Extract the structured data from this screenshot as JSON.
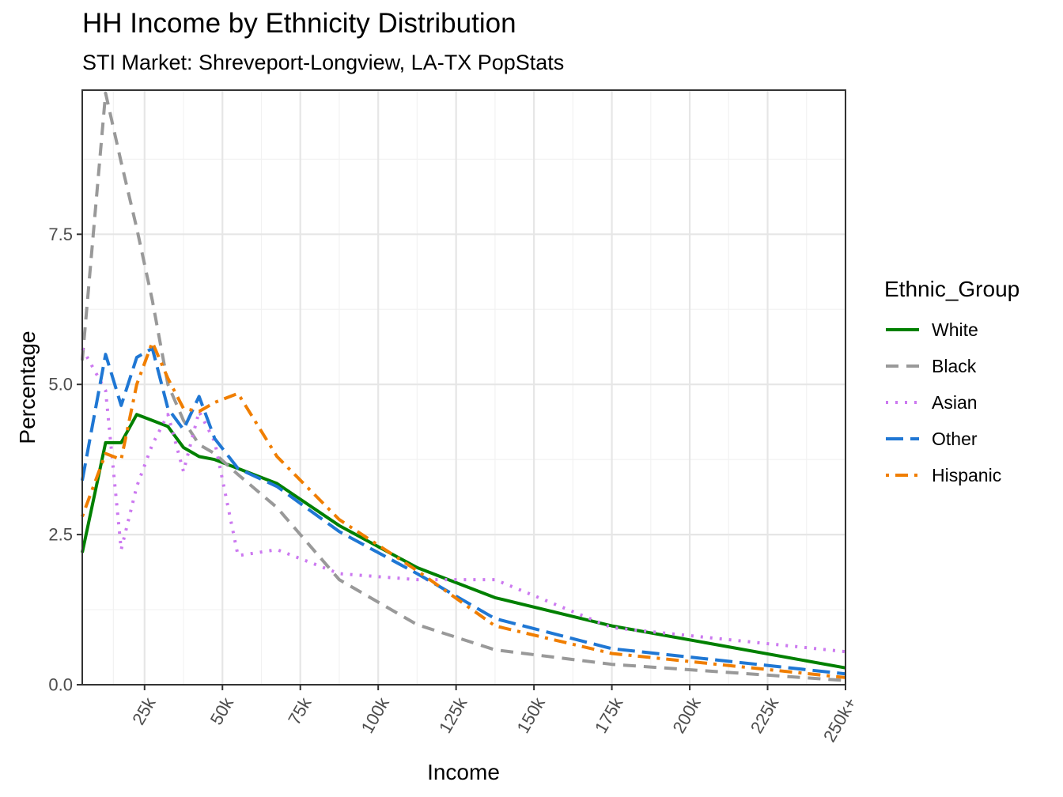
{
  "chart_data": {
    "type": "line",
    "title": "HH Income by Ethnicity Distribution",
    "subtitle": "STI Market: Shreveport-Longview, LA-TX PopStats",
    "xlabel": "Income",
    "ylabel": "Percentage",
    "x_ticks": [
      "25k",
      "50k",
      "75k",
      "100k",
      "125k",
      "150k",
      "175k",
      "200k",
      "225k",
      "250k+"
    ],
    "x_tick_values": [
      25,
      50,
      75,
      100,
      125,
      150,
      175,
      200,
      225,
      250
    ],
    "y_ticks": [
      "0.0",
      "2.5",
      "5.0",
      "7.5"
    ],
    "y_tick_values": [
      0,
      2.5,
      5,
      7.5
    ],
    "xlim": [
      5,
      250
    ],
    "ylim": [
      0,
      9.9
    ],
    "grid": true,
    "legend_title": "Ethnic_Group",
    "legend_position": "right",
    "x": [
      5,
      12.5,
      17.5,
      22.5,
      27.5,
      32.5,
      37.5,
      42.5,
      47.5,
      55,
      67.5,
      87.5,
      112.5,
      137.5,
      175,
      250
    ],
    "series": [
      {
        "name": "White",
        "color": "#008000",
        "dash": "solid",
        "values": [
          2.2,
          4.03,
          4.03,
          4.5,
          4.4,
          4.3,
          3.95,
          3.8,
          3.75,
          3.6,
          3.35,
          2.65,
          1.95,
          1.45,
          0.98,
          0.28
        ]
      },
      {
        "name": "Black",
        "color": "#999999",
        "dash": "dash",
        "values": [
          5.4,
          9.85,
          8.7,
          7.6,
          6.4,
          5.0,
          4.4,
          4.0,
          3.85,
          3.5,
          2.95,
          1.75,
          1.0,
          0.58,
          0.34,
          0.07
        ]
      },
      {
        "name": "Asian",
        "color": "#cc79f0",
        "dash": "dot",
        "values": [
          5.6,
          4.9,
          2.25,
          3.3,
          4.0,
          4.5,
          3.55,
          4.55,
          4.05,
          2.15,
          2.25,
          1.85,
          1.75,
          1.75,
          0.95,
          0.55
        ]
      },
      {
        "name": "Other",
        "color": "#1f77d4",
        "dash": "longdash",
        "values": [
          3.4,
          5.5,
          4.65,
          5.45,
          5.6,
          4.6,
          4.25,
          4.8,
          4.1,
          3.6,
          3.3,
          2.55,
          1.85,
          1.1,
          0.6,
          0.18
        ]
      },
      {
        "name": "Hispanic",
        "color": "#f07e00",
        "dash": "dotdash",
        "values": [
          2.8,
          3.85,
          3.75,
          5.0,
          5.7,
          5.1,
          4.6,
          4.55,
          4.7,
          4.85,
          3.8,
          2.75,
          1.9,
          0.98,
          0.52,
          0.12
        ]
      }
    ]
  }
}
